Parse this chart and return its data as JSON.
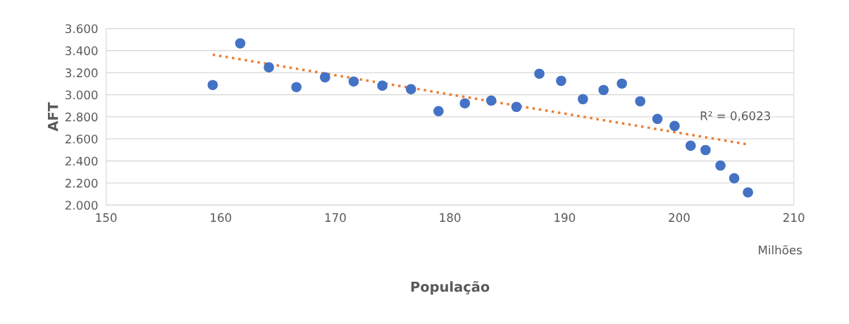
{
  "chart_data": {
    "type": "scatter",
    "xlabel": "População",
    "ylabel": "AFT",
    "xlim": [
      150,
      210
    ],
    "xticks": [
      150,
      160,
      170,
      180,
      190,
      200,
      210
    ],
    "ylim": [
      2000,
      3600
    ],
    "yticks": [
      {
        "value": 2000,
        "label": "2.000"
      },
      {
        "value": 2200,
        "label": "2.200"
      },
      {
        "value": 2400,
        "label": "2.400"
      },
      {
        "value": 2600,
        "label": "2.600"
      },
      {
        "value": 2800,
        "label": "2.800"
      },
      {
        "value": 3000,
        "label": "3.000"
      },
      {
        "value": 3200,
        "label": "3.200"
      },
      {
        "value": 3400,
        "label": "3.400"
      },
      {
        "value": 3600,
        "label": "3.600"
      }
    ],
    "grid": "y",
    "marker": "circle",
    "series": [
      {
        "color": "#4472c4",
        "x": [
          159.3,
          161.7,
          164.2,
          166.6,
          169.1,
          171.6,
          174.1,
          176.6,
          179.0,
          181.3,
          183.6,
          185.8,
          187.8,
          189.7,
          191.6,
          193.4,
          195.0,
          196.6,
          198.1,
          199.6,
          201.0,
          202.3,
          203.6,
          204.8,
          206.0
        ],
        "values": [
          3088,
          3466,
          3248,
          3069,
          3158,
          3120,
          3082,
          3050,
          2851,
          2922,
          2947,
          2890,
          3190,
          3126,
          2960,
          3043,
          3101,
          2941,
          2781,
          2717,
          2538,
          2499,
          2358,
          2243,
          2115
        ]
      },
      {
        "type": "line",
        "color": "#ed7d31",
        "line_style": "dotted",
        "marker": "none",
        "x": [
          159.3,
          206.0
        ],
        "values": [
          3363,
          2550
        ]
      }
    ],
    "annotations": [
      "R² = 0,6023",
      "Milhões"
    ]
  }
}
